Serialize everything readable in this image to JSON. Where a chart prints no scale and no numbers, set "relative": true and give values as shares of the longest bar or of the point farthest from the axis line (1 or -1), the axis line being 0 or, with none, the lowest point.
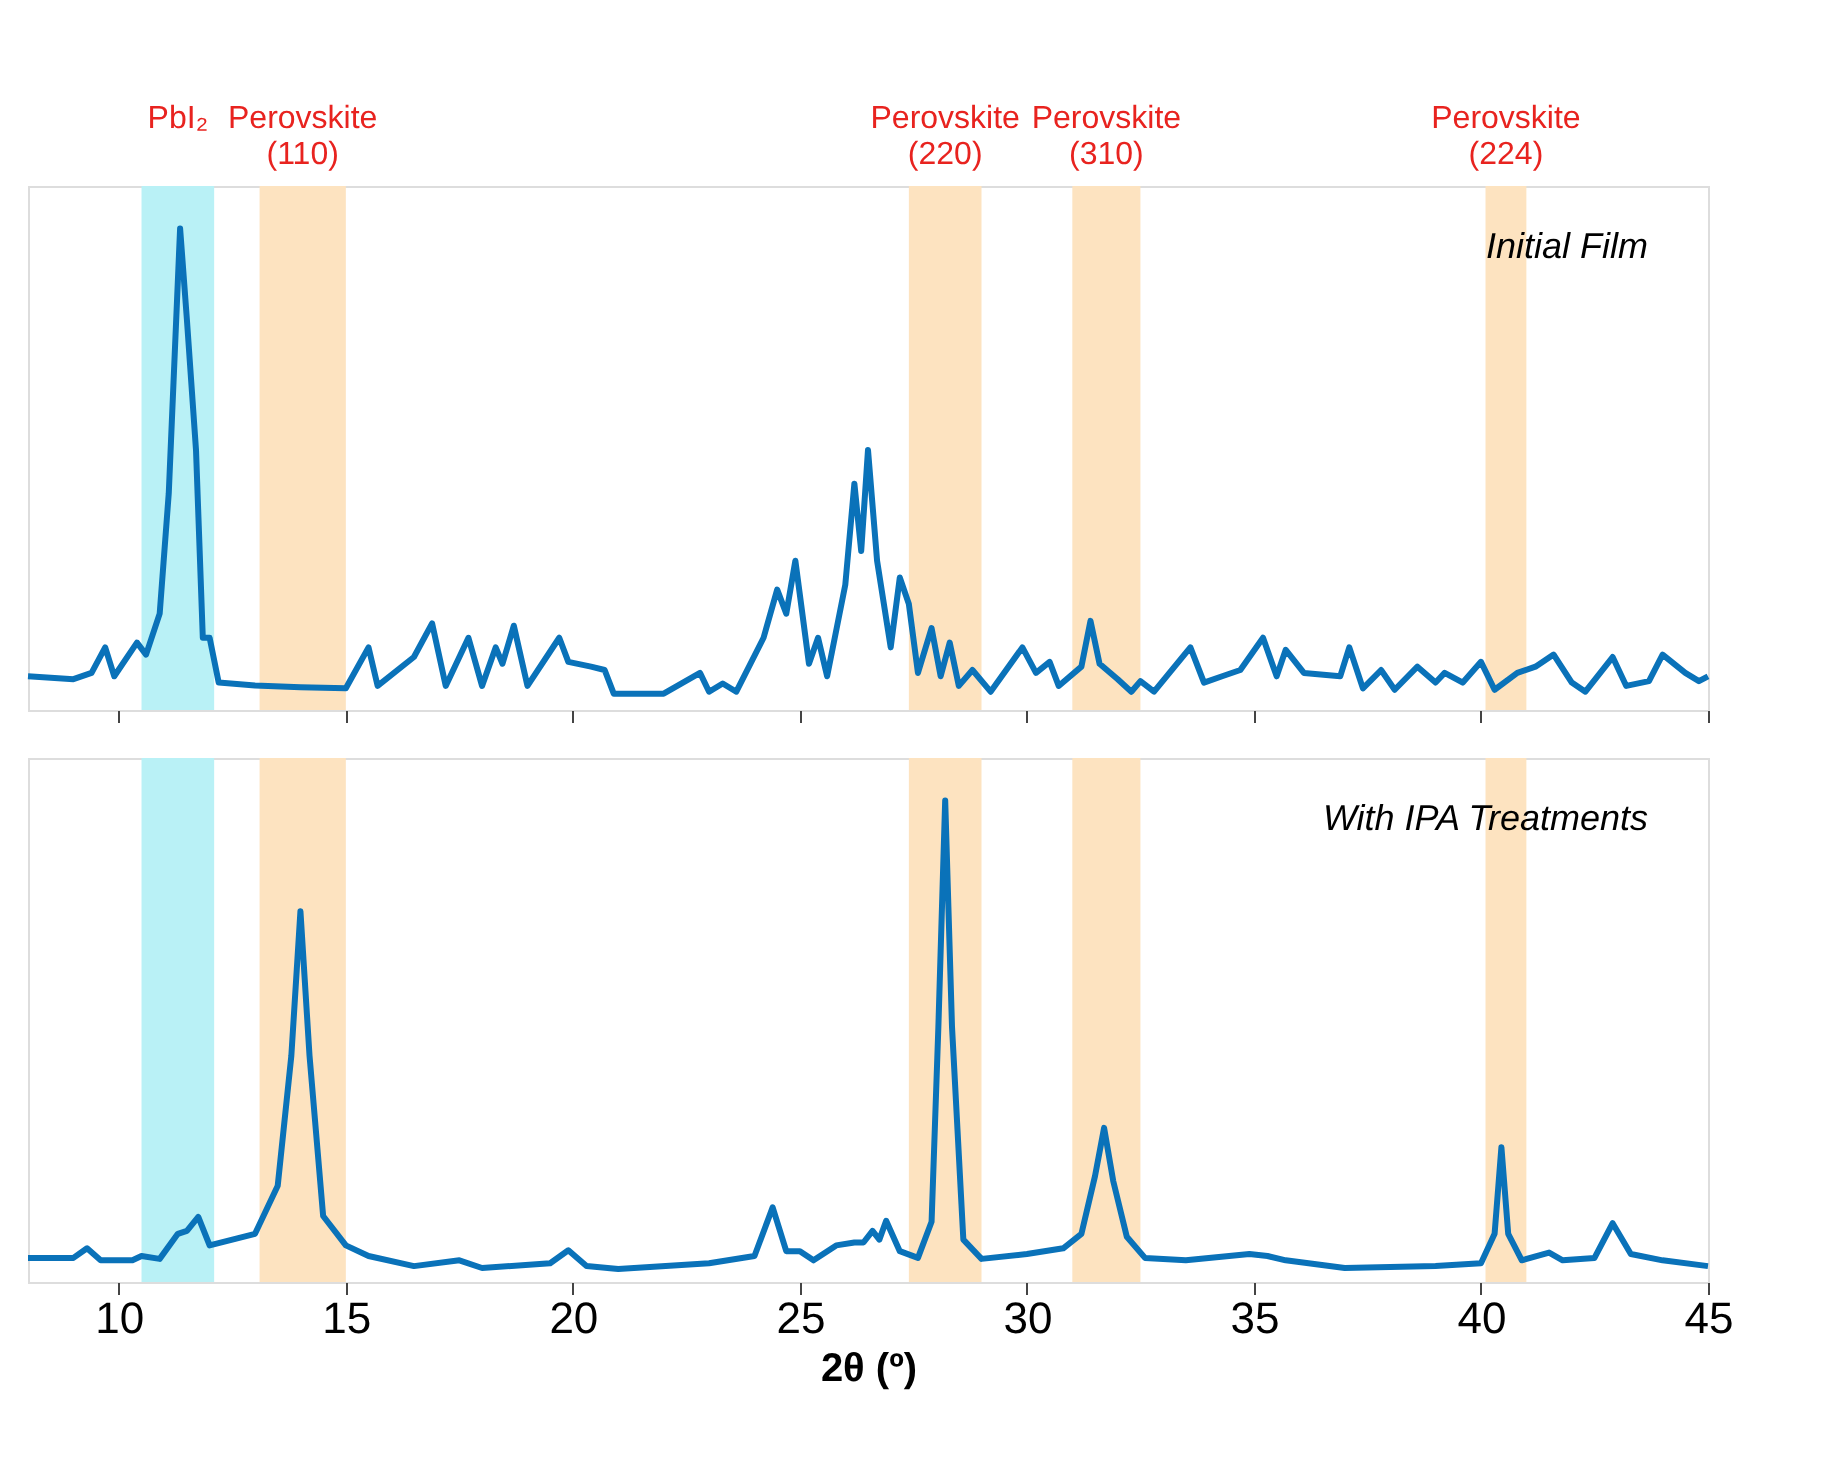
{
  "chart_data": [
    {
      "type": "line",
      "relative": true,
      "tick_labels": false,
      "xlim": [
        8,
        45
      ],
      "xticks": [
        10,
        15,
        20,
        25,
        30,
        35,
        40,
        45
      ],
      "x": [
        8.0,
        9.0,
        9.4,
        9.7,
        9.9,
        10.4,
        10.6,
        10.9,
        11.1,
        11.35,
        11.5,
        11.7,
        11.85,
        12.0,
        12.2,
        13.0,
        14.0,
        15.0,
        15.5,
        15.7,
        16.5,
        16.9,
        17.2,
        17.7,
        18.0,
        18.3,
        18.45,
        18.7,
        19.0,
        19.7,
        19.9,
        20.4,
        20.7,
        20.9,
        22.0,
        22.8,
        23.0,
        23.3,
        23.6,
        24.2,
        24.5,
        24.7,
        24.9,
        25.2,
        25.4,
        25.6,
        26.0,
        26.2,
        26.35,
        26.5,
        26.7,
        27.0,
        27.2,
        27.4,
        27.6,
        27.9,
        28.1,
        28.3,
        28.5,
        28.8,
        29.2,
        29.9,
        30.2,
        30.5,
        30.7,
        31.2,
        31.4,
        31.6,
        32.0,
        32.3,
        32.5,
        32.8,
        33.6,
        33.9,
        34.3,
        34.7,
        35.2,
        35.5,
        35.7,
        36.1,
        36.9,
        37.1,
        37.4,
        37.8,
        38.1,
        38.6,
        39.0,
        39.2,
        39.6,
        40.0,
        40.3,
        40.8,
        41.2,
        41.6,
        42.0,
        42.3,
        42.9,
        43.2,
        43.7,
        44.0,
        44.5,
        44.8,
        45.0
      ],
      "series": [
        {
          "color": "#0a72b9",
          "values": [
            0.07,
            0.064,
            0.077,
            0.13,
            0.07,
            0.14,
            0.115,
            0.2,
            0.45,
            1.0,
            0.81,
            0.54,
            0.15,
            0.15,
            0.057,
            0.051,
            0.047,
            0.045,
            0.13,
            0.05,
            0.11,
            0.18,
            0.05,
            0.15,
            0.05,
            0.13,
            0.096,
            0.175,
            0.05,
            0.15,
            0.1,
            0.09,
            0.083,
            0.034,
            0.034,
            0.077,
            0.038,
            0.055,
            0.038,
            0.15,
            0.25,
            0.2,
            0.31,
            0.096,
            0.15,
            0.07,
            0.26,
            0.47,
            0.33,
            0.54,
            0.31,
            0.13,
            0.275,
            0.22,
            0.077,
            0.17,
            0.07,
            0.14,
            0.05,
            0.083,
            0.038,
            0.13,
            0.077,
            0.1,
            0.05,
            0.09,
            0.185,
            0.096,
            0.064,
            0.038,
            0.06,
            0.038,
            0.13,
            0.057,
            0.07,
            0.083,
            0.15,
            0.07,
            0.125,
            0.077,
            0.07,
            0.13,
            0.045,
            0.083,
            0.042,
            0.09,
            0.057,
            0.077,
            0.057,
            0.1,
            0.042,
            0.077,
            0.09,
            0.115,
            0.057,
            0.038,
            0.11,
            0.05,
            0.06,
            0.115,
            0.077,
            0.06,
            0.07
          ]
        }
      ],
      "bands": [
        {
          "axis": "x",
          "from": 10.5,
          "to": 12.1,
          "label": "PbI₂",
          "color": "#b9f1f6"
        },
        {
          "axis": "x",
          "from": 13.1,
          "to": 15.0,
          "label": "Perovskite\n(110)",
          "color": "#fde3c0"
        },
        {
          "axis": "x",
          "from": 27.4,
          "to": 29.0,
          "label": "Perovskite\n(220)",
          "color": "#fde3c0"
        },
        {
          "axis": "x",
          "from": 31.0,
          "to": 32.5,
          "label": "Perovskite\n(310)",
          "color": "#fde3c0"
        },
        {
          "axis": "x",
          "from": 40.1,
          "to": 41.0,
          "label": "Perovskite\n(224)",
          "color": "#fde3c0"
        }
      ],
      "annotations": [
        "Initial Film"
      ]
    },
    {
      "type": "line",
      "relative": true,
      "tick_labels": "x",
      "xlim": [
        8,
        45
      ],
      "xticks": [
        10,
        15,
        20,
        25,
        30,
        35,
        40,
        45
      ],
      "xlabel": "2θ (º)",
      "x": [
        8.0,
        9.0,
        9.3,
        9.6,
        10.3,
        10.5,
        10.9,
        11.3,
        11.5,
        11.75,
        12.0,
        12.5,
        13.0,
        13.5,
        13.8,
        14.0,
        14.2,
        14.5,
        15.0,
        15.5,
        16.5,
        17.5,
        18.0,
        19.5,
        19.9,
        20.3,
        21.0,
        23.0,
        24.0,
        24.4,
        24.7,
        25.0,
        25.3,
        25.8,
        26.2,
        26.4,
        26.6,
        26.75,
        26.9,
        27.2,
        27.6,
        27.9,
        28.05,
        28.2,
        28.35,
        28.6,
        29.0,
        30.0,
        30.8,
        31.2,
        31.5,
        31.7,
        31.9,
        32.2,
        32.6,
        33.5,
        34.9,
        35.3,
        35.7,
        37.0,
        39.0,
        40.0,
        40.3,
        40.45,
        40.6,
        40.9,
        41.5,
        41.8,
        42.5,
        42.9,
        43.3,
        44.0,
        45.0
      ],
      "series": [
        {
          "color": "#0a72b9",
          "values": [
            0.05,
            0.05,
            0.07,
            0.045,
            0.045,
            0.054,
            0.048,
            0.1,
            0.106,
            0.135,
            0.076,
            0.088,
            0.1,
            0.2,
            0.47,
            0.77,
            0.47,
            0.137,
            0.076,
            0.054,
            0.033,
            0.045,
            0.029,
            0.039,
            0.066,
            0.033,
            0.027,
            0.039,
            0.054,
            0.155,
            0.064,
            0.064,
            0.045,
            0.076,
            0.082,
            0.082,
            0.106,
            0.088,
            0.127,
            0.064,
            0.05,
            0.125,
            0.53,
            1.0,
            0.53,
            0.088,
            0.048,
            0.058,
            0.07,
            0.1,
            0.22,
            0.32,
            0.21,
            0.094,
            0.05,
            0.045,
            0.058,
            0.054,
            0.045,
            0.029,
            0.033,
            0.039,
            0.1,
            0.28,
            0.1,
            0.045,
            0.061,
            0.045,
            0.05,
            0.122,
            0.058,
            0.045,
            0.033
          ]
        }
      ],
      "bands": [
        {
          "axis": "x",
          "from": 10.5,
          "to": 12.1,
          "color": "#b9f1f6"
        },
        {
          "axis": "x",
          "from": 13.1,
          "to": 15.0,
          "color": "#fde3c0"
        },
        {
          "axis": "x",
          "from": 27.4,
          "to": 29.0,
          "color": "#fde3c0"
        },
        {
          "axis": "x",
          "from": 31.0,
          "to": 32.5,
          "color": "#fde3c0"
        },
        {
          "axis": "x",
          "from": 40.1,
          "to": 41.0,
          "color": "#fde3c0"
        }
      ],
      "annotations": [
        "With IPA Treatments"
      ]
    }
  ]
}
